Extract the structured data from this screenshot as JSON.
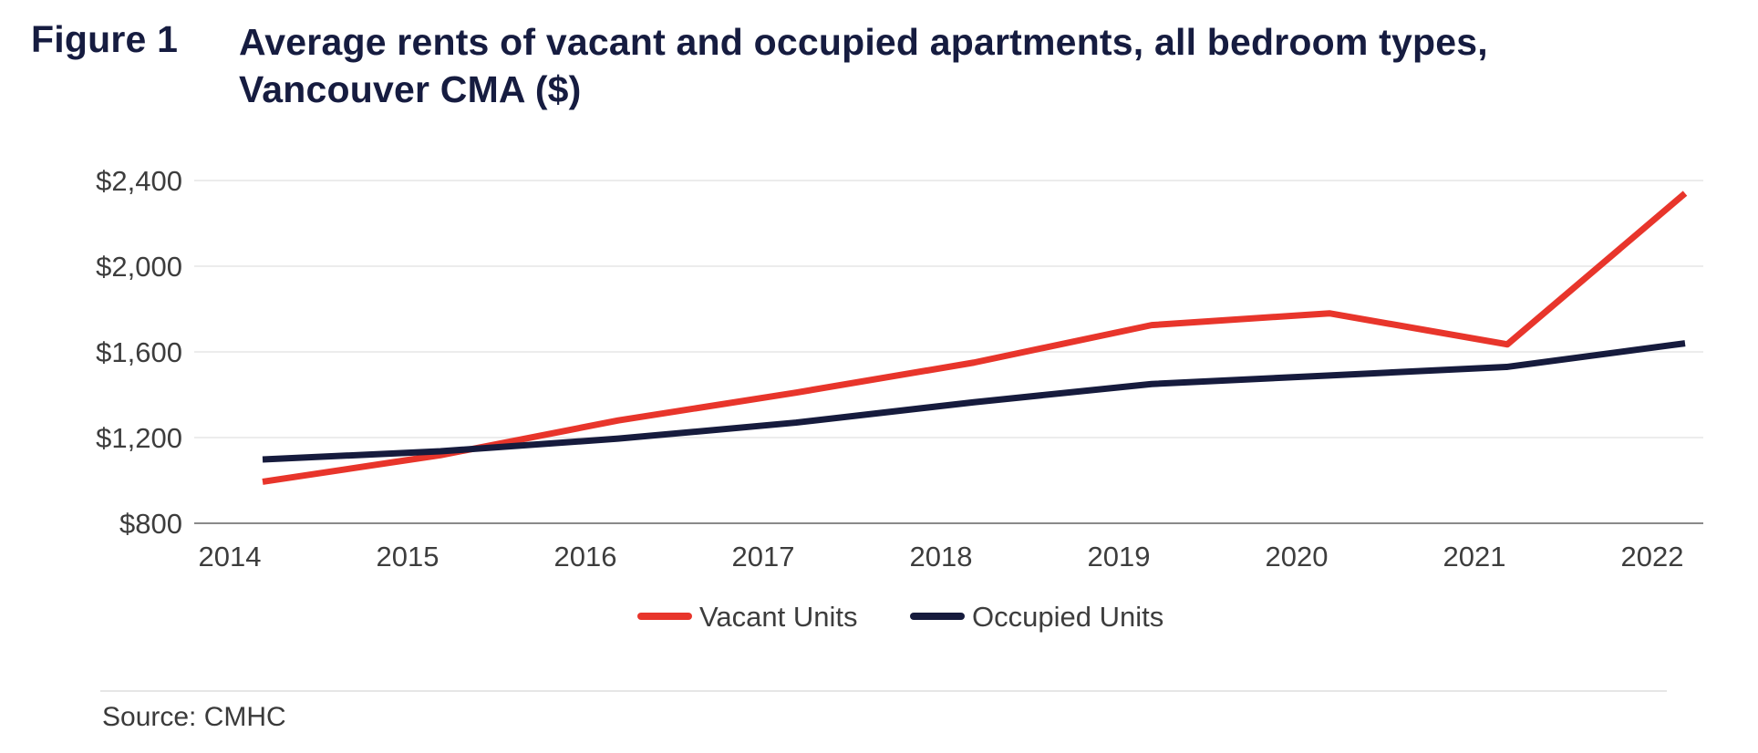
{
  "header": {
    "figure_label": "Figure 1",
    "title": "Average rents of vacant and occupied apartments, all bedroom types, Vancouver CMA ($)"
  },
  "source": "Source: CMHC",
  "colors": {
    "vacant": "#e8352b",
    "occupied": "#161b3d",
    "grid": "#ececec",
    "axis": "#8a8a8a",
    "text": "#3d3d3d"
  },
  "chart_data": {
    "type": "line",
    "title": "Average rents of vacant and occupied apartments, all bedroom types, Vancouver CMA ($)",
    "xlabel": "",
    "ylabel": "",
    "categories": [
      "2014",
      "2015",
      "2016",
      "2017",
      "2018",
      "2019",
      "2020",
      "2021",
      "2022"
    ],
    "ylim": [
      800,
      2400
    ],
    "yticks": [
      800,
      1200,
      1600,
      2000,
      2400
    ],
    "ytick_labels": [
      "$800",
      "$1,200",
      "$1,600",
      "$2,000",
      "$2,400"
    ],
    "grid": true,
    "legend_position": "bottom-center",
    "series": [
      {
        "name": "Vacant Units",
        "color": "#e8352b",
        "values": [
          994,
          1118,
          1280,
          1410,
          1550,
          1725,
          1780,
          1635,
          2340
        ]
      },
      {
        "name": "Occupied Units",
        "color": "#161b3d",
        "values": [
          1098,
          1136,
          1195,
          1270,
          1365,
          1450,
          1490,
          1530,
          1640
        ]
      }
    ]
  }
}
